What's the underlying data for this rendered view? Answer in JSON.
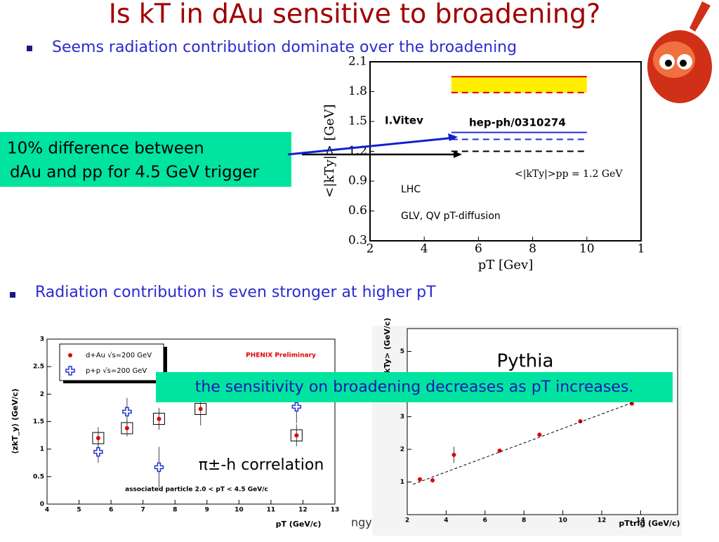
{
  "title": "Is kT in dAu sensitive to broadening?",
  "bullets": [
    "Seems radiation contribution dominate over the broadening",
    "Radiation contribution is even stronger at higher pT"
  ],
  "callouts": [
    "10% difference between",
    "dAu and pp for 4.5 GeV trigger",
    "the sensitivity on broadening decreases as pT increases."
  ],
  "fragment": "ngy",
  "chart_data": [
    {
      "type": "line",
      "xlabel": "pT [Gev]",
      "ylabel": "<|kTy|> [GeV]",
      "xlim": [
        2,
        12
      ],
      "ylim": [
        0.3,
        2.1
      ],
      "xticks": [
        2,
        4,
        6,
        8,
        10,
        {
          "value": 12,
          "label": "1"
        }
      ],
      "yticks": [
        0.3,
        0.6,
        0.9,
        1.2,
        1.5,
        1.8,
        2.1
      ],
      "annotations": [
        "I.Vitev",
        "hep-ph/0310274",
        "<|kTy|>pp = 1.2 GeV",
        "LHC",
        "GLV, QV pT-diffusion"
      ],
      "series": [
        {
          "x": [
            5,
            10
          ],
          "values": [
            1.95,
            1.95
          ],
          "color": "#e00000",
          "dash": false
        },
        {
          "x": [
            5,
            10
          ],
          "values": [
            1.79,
            1.79
          ],
          "color": "#e00000",
          "dash": true
        },
        {
          "x": [
            5,
            10
          ],
          "values": [
            1.39,
            1.39
          ],
          "color": "#2030e0",
          "dash": false
        },
        {
          "x": [
            5,
            10
          ],
          "values": [
            1.32,
            1.32
          ],
          "color": "#2030e0",
          "dash": true
        },
        {
          "x": [
            5,
            10
          ],
          "values": [
            1.2,
            1.2
          ],
          "color": "#000000",
          "dash": true
        }
      ]
    },
    {
      "type": "scatter",
      "xlabel": "pT (GeV/c)",
      "ylabel": "⟨zkT_y⟩ (GeV/c)",
      "xlim": [
        4,
        13
      ],
      "ylim": [
        0,
        3
      ],
      "xticks": [
        4,
        5,
        6,
        7,
        8,
        9,
        10,
        11,
        12,
        13
      ],
      "yticks": [
        0,
        0.5,
        1,
        1.5,
        2,
        2.5,
        3
      ],
      "annotations": [
        "PHENIX Preliminary",
        "associated particle 2.0 < pT < 4.5 GeV/c",
        "π±-h correlation"
      ],
      "series": [
        {
          "name": "d+Au √s=200 GeV",
          "color": "#e00000",
          "marker": "dot",
          "x": [
            5.6,
            6.5,
            7.5,
            8.8,
            11.8
          ],
          "values": [
            1.2,
            1.38,
            1.55,
            1.73,
            1.25
          ],
          "errors": [
            0.2,
            0.15,
            0.2,
            0.3,
            0.2
          ]
        },
        {
          "name": "p+p √s=200 GeV",
          "color": "#2030d0",
          "marker": "cross",
          "x": [
            5.6,
            6.5,
            7.5,
            11.8
          ],
          "values": [
            0.95,
            1.68,
            0.67,
            1.77
          ],
          "errors": [
            0.2,
            0.25,
            0.37,
            0.3
          ]
        }
      ]
    },
    {
      "type": "scatter",
      "title": "Pythia",
      "xlabel": "pTtrig (GeV/c)",
      "ylabel": "<zkTy> (GeV/c)",
      "xlim": [
        2,
        15.9
      ],
      "ylim": [
        0,
        5.7
      ],
      "xticks": [
        2,
        4,
        6,
        8,
        10,
        12,
        14
      ],
      "yticks": [
        1,
        2,
        3,
        5
      ],
      "series": [
        {
          "color": "#e00000",
          "marker": "dot",
          "x": [
            2.65,
            3.3,
            4.4,
            6.75,
            8.8,
            10.9,
            13.55
          ],
          "values": [
            1.08,
            1.05,
            1.83,
            1.96,
            2.45,
            2.86,
            3.4
          ],
          "errors": [
            0.05,
            0.07,
            0.25,
            null,
            null,
            null,
            null
          ]
        },
        {
          "color": "#000000",
          "marker": "fit",
          "x": [
            2.3,
            13.75
          ],
          "values": [
            0.93,
            3.47
          ]
        }
      ]
    }
  ]
}
